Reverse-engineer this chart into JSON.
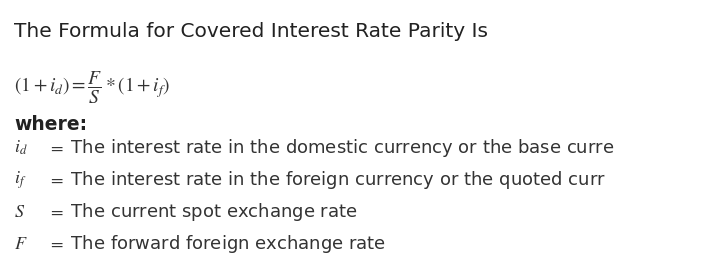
{
  "background_color": "#ffffff",
  "title": "The Formula for Covered Interest Rate Parity Is",
  "title_fontsize": 14.5,
  "title_color": "#222222",
  "text_color": "#333333",
  "formula_fontsize": 14.0,
  "where_fontsize": 13.5,
  "def_fontsize": 13.0,
  "definitions": [
    {
      "label": "$i_d$",
      "desc": " $=$ The interest rate in the domestic currency or the base curre"
    },
    {
      "label": "$i_f$",
      "desc": " $=$ The interest rate in the foreign currency or the quoted curr"
    },
    {
      "label": "$S$",
      "desc": " $=$ The current spot exchange rate"
    },
    {
      "label": "$F$",
      "desc": " $=$ The forward foreign exchange rate"
    }
  ]
}
